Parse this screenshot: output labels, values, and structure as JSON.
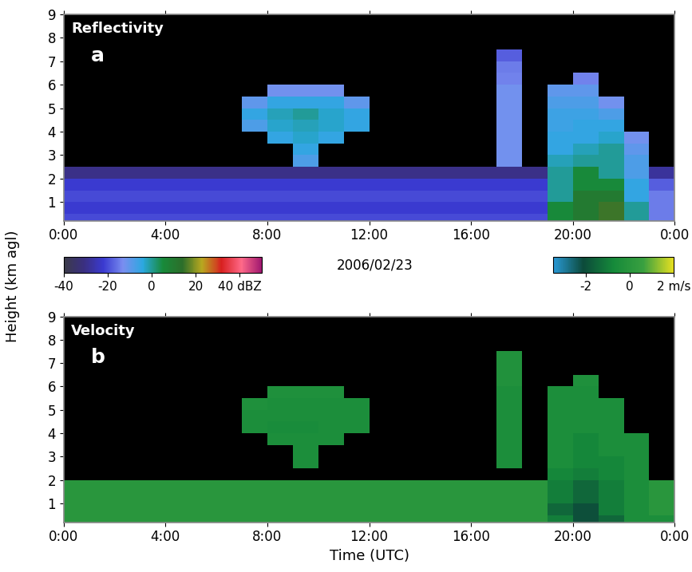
{
  "figure": {
    "date": "2006/02/23",
    "y_label": "Height (km agl)"
  },
  "chart_data": [
    {
      "type": "heatmap",
      "title": "Reflectivity",
      "panel": "a",
      "xlim": [
        0,
        24
      ],
      "ylim": [
        0.2,
        9
      ],
      "xticks": [
        {
          "value": 0,
          "label": "0:00"
        },
        {
          "value": 4,
          "label": "4:00"
        },
        {
          "value": 8,
          "label": "8:00"
        },
        {
          "value": 12,
          "label": "12:00"
        },
        {
          "value": 16,
          "label": "16:00"
        },
        {
          "value": 20,
          "label": "20:00"
        },
        {
          "value": 24,
          "label": "0:00"
        }
      ],
      "yticks": [
        1,
        2,
        3,
        4,
        5,
        6,
        7,
        8,
        9
      ],
      "x_edges": [
        0,
        1,
        2,
        3,
        4,
        5,
        6,
        7,
        8,
        9,
        10,
        11,
        12,
        13,
        14,
        15,
        16,
        17,
        18,
        19,
        20,
        21,
        22,
        23,
        24
      ],
      "y_edges": [
        0.2,
        0.5,
        1.0,
        1.5,
        2.0,
        2.5,
        3.0,
        3.5,
        4.0,
        4.5,
        5.0,
        5.5,
        6.0,
        6.5,
        7.0,
        7.5,
        8.0,
        8.5,
        9.0
      ],
      "colorbar": {
        "range": [
          -40,
          50
        ],
        "ticks": [
          -40,
          -20,
          0,
          20,
          {
            "value": 40,
            "label": "40 dBZ"
          }
        ]
      },
      "cells": [
        [
          -20,
          -20,
          -20,
          -20,
          -20,
          -20,
          -20,
          -20,
          -20,
          -20,
          -20,
          -20,
          -20,
          -20,
          -20,
          -20,
          -20,
          -20,
          -20,
          5,
          10,
          15,
          0,
          -15
        ],
        [
          -22,
          -22,
          -22,
          -22,
          -22,
          -22,
          -22,
          -22,
          -22,
          -22,
          -22,
          -22,
          -22,
          -22,
          -22,
          -22,
          -22,
          -22,
          -22,
          5,
          10,
          15,
          0,
          -15
        ],
        [
          -20,
          -20,
          -20,
          -20,
          -20,
          -20,
          -20,
          -20,
          -20,
          -20,
          -20,
          -20,
          -20,
          -20,
          -20,
          -20,
          -20,
          -20,
          -20,
          0,
          10,
          10,
          -5,
          -15
        ],
        [
          -22,
          -22,
          -22,
          -22,
          -22,
          -22,
          -22,
          -22,
          -22,
          -22,
          -22,
          -22,
          -22,
          -22,
          -22,
          -22,
          -22,
          -22,
          -22,
          0,
          5,
          5,
          -5,
          -18
        ],
        [
          -30,
          -30,
          -30,
          -30,
          -30,
          -30,
          -30,
          -30,
          -30,
          -30,
          -30,
          -30,
          -30,
          -30,
          -30,
          -30,
          -30,
          -30,
          -30,
          0,
          5,
          0,
          -8,
          -28
        ],
        [
          null,
          null,
          null,
          null,
          null,
          null,
          null,
          null,
          null,
          -8,
          null,
          null,
          null,
          null,
          null,
          null,
          null,
          -12,
          null,
          -2,
          0,
          0,
          -8,
          null
        ],
        [
          null,
          null,
          null,
          null,
          null,
          null,
          null,
          null,
          null,
          -5,
          null,
          null,
          null,
          null,
          null,
          null,
          null,
          -12,
          null,
          -5,
          -2,
          0,
          -10,
          null
        ],
        [
          null,
          null,
          null,
          null,
          null,
          null,
          null,
          null,
          -5,
          -3,
          -5,
          null,
          null,
          null,
          null,
          null,
          null,
          -12,
          null,
          -5,
          -5,
          -3,
          -12,
          null
        ],
        [
          null,
          null,
          null,
          null,
          null,
          null,
          null,
          -8,
          -3,
          -2,
          -3,
          -5,
          null,
          null,
          null,
          null,
          null,
          -12,
          null,
          -6,
          -5,
          -5,
          null,
          null
        ],
        [
          null,
          null,
          null,
          null,
          null,
          null,
          null,
          -5,
          -2,
          0,
          -3,
          -5,
          null,
          null,
          null,
          null,
          null,
          -12,
          null,
          -6,
          -6,
          -8,
          null,
          null
        ],
        [
          null,
          null,
          null,
          null,
          null,
          null,
          null,
          -10,
          -5,
          -5,
          -5,
          -10,
          null,
          null,
          null,
          null,
          null,
          -12,
          null,
          -8,
          -8,
          -12,
          null,
          null
        ],
        [
          null,
          null,
          null,
          null,
          null,
          null,
          null,
          null,
          -12,
          -12,
          -12,
          null,
          null,
          null,
          null,
          null,
          null,
          -12,
          null,
          -10,
          -10,
          null,
          null,
          null
        ],
        [
          null,
          null,
          null,
          null,
          null,
          null,
          null,
          null,
          null,
          null,
          null,
          null,
          null,
          null,
          null,
          null,
          null,
          -14,
          null,
          null,
          -14,
          null,
          null,
          null
        ],
        [
          null,
          null,
          null,
          null,
          null,
          null,
          null,
          null,
          null,
          null,
          null,
          null,
          null,
          null,
          null,
          null,
          null,
          -15,
          null,
          null,
          null,
          null,
          null,
          null
        ],
        [
          null,
          null,
          null,
          null,
          null,
          null,
          null,
          null,
          null,
          null,
          null,
          null,
          null,
          null,
          null,
          null,
          null,
          -18,
          null,
          null,
          null,
          null,
          null,
          null
        ],
        [
          null,
          null,
          null,
          null,
          null,
          null,
          null,
          null,
          null,
          null,
          null,
          null,
          null,
          null,
          null,
          null,
          null,
          null,
          null,
          null,
          null,
          null,
          null,
          null
        ],
        [
          null,
          null,
          null,
          null,
          null,
          null,
          null,
          null,
          null,
          null,
          null,
          null,
          null,
          null,
          null,
          null,
          null,
          null,
          null,
          null,
          null,
          null,
          null,
          null
        ],
        [
          null,
          null,
          null,
          null,
          null,
          null,
          null,
          null,
          null,
          null,
          null,
          null,
          null,
          null,
          null,
          null,
          null,
          null,
          null,
          null,
          null,
          null,
          null,
          null
        ]
      ]
    },
    {
      "type": "heatmap",
      "title": "Velocity",
      "panel": "b",
      "x_label": "Time (UTC)",
      "xlim": [
        0,
        24
      ],
      "ylim": [
        0.2,
        9
      ],
      "xticks": [
        {
          "value": 0,
          "label": "0:00"
        },
        {
          "value": 4,
          "label": "4:00"
        },
        {
          "value": 8,
          "label": "8:00"
        },
        {
          "value": 12,
          "label": "12:00"
        },
        {
          "value": 16,
          "label": "16:00"
        },
        {
          "value": 20,
          "label": "20:00"
        },
        {
          "value": 24,
          "label": "0:00"
        }
      ],
      "yticks": [
        1,
        2,
        3,
        4,
        5,
        6,
        7,
        8,
        9
      ],
      "x_edges": [
        0,
        1,
        2,
        3,
        4,
        5,
        6,
        7,
        8,
        9,
        10,
        11,
        12,
        13,
        14,
        15,
        16,
        17,
        18,
        19,
        20,
        21,
        22,
        23,
        24
      ],
      "y_edges": [
        0.2,
        0.5,
        1.0,
        1.5,
        2.0,
        2.5,
        3.0,
        3.5,
        4.0,
        4.5,
        5.0,
        5.5,
        6.0,
        6.5,
        7.0,
        7.5,
        8.0,
        8.5,
        9.0
      ],
      "colorbar": {
        "range": [
          -3.5,
          2
        ],
        "ticks": [
          -2,
          0,
          {
            "value": 2,
            "label": "2 m/s"
          }
        ]
      },
      "cells": [
        [
          0,
          0,
          0,
          0,
          0,
          0,
          0,
          0,
          0,
          0,
          0,
          0,
          0,
          0,
          0,
          0,
          0,
          0,
          0,
          -1,
          -2,
          -1.5,
          -0.5,
          -0.5
        ],
        [
          0,
          0,
          0,
          0,
          0,
          0,
          0,
          0,
          0,
          0,
          0,
          0,
          0,
          0,
          0,
          0,
          0,
          0,
          0,
          -1.5,
          -2,
          -1,
          -0.5,
          0
        ],
        [
          0,
          0,
          0,
          0,
          0,
          0,
          0,
          0,
          0,
          0,
          0,
          0,
          0,
          0,
          0,
          0,
          0,
          0,
          0,
          -1,
          -1.5,
          -1,
          -0.5,
          0
        ],
        [
          0,
          0,
          0,
          0,
          0,
          0,
          0,
          0,
          0,
          0,
          0,
          0,
          0,
          0,
          0,
          0,
          0,
          0,
          0,
          -1,
          -1.5,
          -1,
          -0.5,
          0
        ],
        [
          null,
          null,
          null,
          null,
          null,
          null,
          null,
          null,
          null,
          null,
          null,
          null,
          null,
          null,
          null,
          null,
          null,
          null,
          null,
          -0.8,
          -1,
          -0.8,
          -0.5,
          null
        ],
        [
          null,
          null,
          null,
          null,
          null,
          null,
          null,
          null,
          null,
          -0.5,
          null,
          null,
          null,
          null,
          null,
          null,
          null,
          -0.5,
          null,
          -0.5,
          -0.8,
          -0.8,
          -0.5,
          null
        ],
        [
          null,
          null,
          null,
          null,
          null,
          null,
          null,
          null,
          null,
          -0.5,
          null,
          null,
          null,
          null,
          null,
          null,
          null,
          -0.5,
          null,
          -0.5,
          -0.8,
          -0.5,
          -0.5,
          null
        ],
        [
          null,
          null,
          null,
          null,
          null,
          null,
          null,
          null,
          -0.5,
          -0.5,
          -0.5,
          null,
          null,
          null,
          null,
          null,
          null,
          -0.5,
          null,
          -0.5,
          -0.8,
          -0.5,
          -0.5,
          null
        ],
        [
          null,
          null,
          null,
          null,
          null,
          null,
          null,
          -0.5,
          -0.6,
          -0.6,
          -0.5,
          -0.5,
          null,
          null,
          null,
          null,
          null,
          -0.5,
          null,
          -0.5,
          -0.5,
          -0.5,
          null,
          null
        ],
        [
          null,
          null,
          null,
          null,
          null,
          null,
          null,
          -0.5,
          -0.5,
          -0.5,
          -0.5,
          -0.5,
          null,
          null,
          null,
          null,
          null,
          -0.5,
          null,
          -0.5,
          -0.5,
          -0.5,
          null,
          null
        ],
        [
          null,
          null,
          null,
          null,
          null,
          null,
          null,
          -0.4,
          -0.5,
          -0.5,
          -0.5,
          -0.5,
          null,
          null,
          null,
          null,
          null,
          -0.5,
          null,
          -0.5,
          -0.5,
          -0.5,
          null,
          null
        ],
        [
          null,
          null,
          null,
          null,
          null,
          null,
          null,
          null,
          -0.4,
          -0.4,
          -0.4,
          null,
          null,
          null,
          null,
          null,
          null,
          -0.5,
          null,
          -0.5,
          -0.5,
          null,
          null,
          null
        ],
        [
          null,
          null,
          null,
          null,
          null,
          null,
          null,
          null,
          null,
          null,
          null,
          null,
          null,
          null,
          null,
          null,
          null,
          -0.3,
          null,
          null,
          -0.4,
          null,
          null,
          null
        ],
        [
          null,
          null,
          null,
          null,
          null,
          null,
          null,
          null,
          null,
          null,
          null,
          null,
          null,
          null,
          null,
          null,
          null,
          -0.3,
          null,
          null,
          null,
          null,
          null,
          null
        ],
        [
          null,
          null,
          null,
          null,
          null,
          null,
          null,
          null,
          null,
          null,
          null,
          null,
          null,
          null,
          null,
          null,
          null,
          -0.3,
          null,
          null,
          null,
          null,
          null,
          null
        ],
        [
          null,
          null,
          null,
          null,
          null,
          null,
          null,
          null,
          null,
          null,
          null,
          null,
          null,
          null,
          null,
          null,
          null,
          null,
          null,
          null,
          null,
          null,
          null,
          null
        ],
        [
          null,
          null,
          null,
          null,
          null,
          null,
          null,
          null,
          null,
          null,
          null,
          null,
          null,
          null,
          null,
          null,
          null,
          null,
          null,
          null,
          null,
          null,
          null,
          null
        ],
        [
          null,
          null,
          null,
          null,
          null,
          null,
          null,
          null,
          null,
          null,
          null,
          null,
          null,
          null,
          null,
          null,
          null,
          null,
          null,
          null,
          null,
          null,
          null,
          null
        ]
      ]
    }
  ]
}
